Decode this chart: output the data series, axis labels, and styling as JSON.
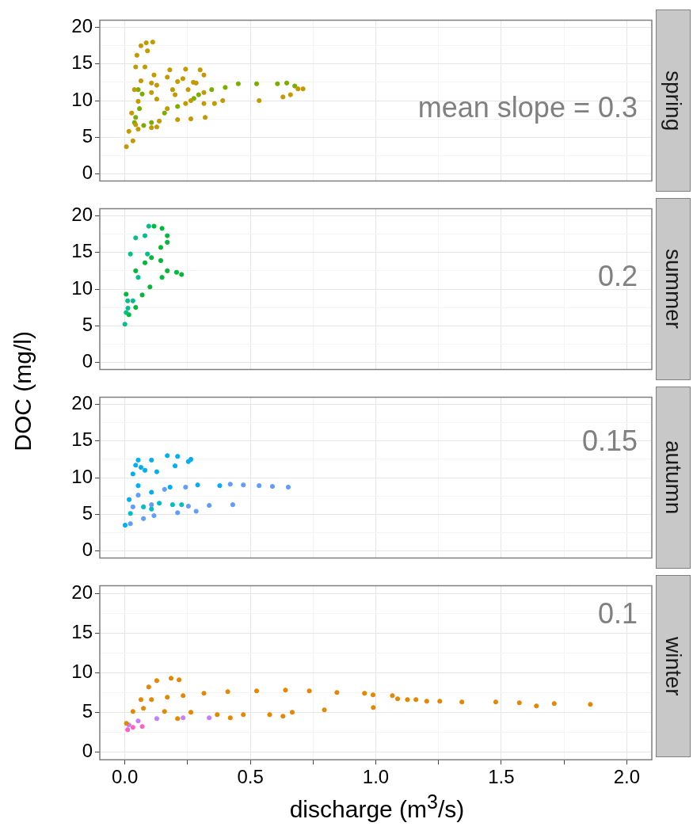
{
  "chart_data": [
    {
      "type": "scatter",
      "title": "spring",
      "annotations": [
        "mean slope = 0.3"
      ],
      "xlim": [
        -0.1,
        2.1
      ],
      "ylim": [
        -1,
        21
      ],
      "xticks": [
        0,
        {
          "value": 0.25,
          "label": null
        },
        0.5,
        {
          "value": 0.75,
          "label": null
        },
        1,
        {
          "value": 1.25,
          "label": null
        },
        1.5,
        {
          "value": 1.75,
          "label": null
        },
        2
      ],
      "yticks": [
        0,
        {
          "value": 2.5,
          "label": null
        },
        5,
        {
          "value": 7.5,
          "label": null
        },
        10,
        {
          "value": 12.5,
          "label": null
        },
        15,
        {
          "value": 17.5,
          "label": null
        },
        20
      ],
      "tick_labels": "y",
      "grid": true,
      "legend": false,
      "marker": "circle",
      "series": [
        {
          "color": "#c49a00",
          "x": [
            0.006,
            0.016,
            0.027,
            0.038,
            0.043,
            0.048,
            0.064,
            0.085,
            0.111,
            0.09,
            0.08,
            0.064,
            0.053,
            0.043,
            0.116,
            0.179,
            0.242,
            0.3,
            0.315,
            0.106,
            0.169,
            0.231,
            0.284,
            0.127,
            0.21,
            0.273,
            0.106,
            0.19,
            0.252,
            0.315,
            0.127,
            0.2,
            0.263,
            0.169,
            0.242,
            0.315,
            0.357,
            0.137,
            0.21,
            0.263,
            0.32,
            0.053,
            0.106,
            0.127,
            0.032,
            0.39,
            0.535,
            0.63,
            0.66,
            0.69,
            0.71
          ],
          "values": [
            3.7,
            5.8,
            8.3,
            11.5,
            14.6,
            16.2,
            17.5,
            17.9,
            18.0,
            16.8,
            14.6,
            12.7,
            9.9,
            6.7,
            13.5,
            14.2,
            14.3,
            14.2,
            13.5,
            12.4,
            13.2,
            13.0,
            12.4,
            12.1,
            12.6,
            12.5,
            11.1,
            11.5,
            11.5,
            11.1,
            10.2,
            10.8,
            10.0,
            8.9,
            9.6,
            9.6,
            9.6,
            7.2,
            7.4,
            7.5,
            7.7,
            6.1,
            6.3,
            6.4,
            4.5,
            10.0,
            10.0,
            10.5,
            10.8,
            11.6,
            11.6
          ]
        },
        {
          "color": "#7cae00",
          "x": [
            0.038,
            0.075,
            0.106,
            0.158,
            0.21,
            0.275,
            0.294,
            0.346,
            0.4,
            0.452,
            0.525,
            0.608,
            0.645,
            0.677,
            0.053,
            0.069,
            0.058,
            0.043
          ],
          "values": [
            7.0,
            6.6,
            7.0,
            8.3,
            9.2,
            10.3,
            10.8,
            11.5,
            11.8,
            12.3,
            12.3,
            12.3,
            12.4,
            12.0,
            11.5,
            10.9,
            8.9,
            7.7
          ]
        }
      ]
    },
    {
      "type": "scatter",
      "title": "summer",
      "annotations": [
        "0.2"
      ],
      "xlim": [
        -0.1,
        2.1
      ],
      "ylim": [
        -1,
        21
      ],
      "xticks": [
        0,
        {
          "value": 0.25,
          "label": null
        },
        0.5,
        {
          "value": 0.75,
          "label": null
        },
        1,
        {
          "value": 1.25,
          "label": null
        },
        1.5,
        {
          "value": 1.75,
          "label": null
        },
        2
      ],
      "yticks": [
        0,
        {
          "value": 2.5,
          "label": null
        },
        5,
        {
          "value": 7.5,
          "label": null
        },
        10,
        {
          "value": 12.5,
          "label": null
        },
        15,
        {
          "value": 17.5,
          "label": null
        },
        20
      ],
      "tick_labels": "y",
      "grid": true,
      "legend": false,
      "marker": "circle",
      "series": [
        {
          "color": "#00c08b",
          "x": [
            0.0,
            0.005,
            0.011,
            0.022,
            0.043,
            0.095,
            0.08,
            0.09,
            0.053,
            0.032,
            0.012
          ],
          "values": [
            5.2,
            6.8,
            8.4,
            14.8,
            17.0,
            18.6,
            17.3,
            14.8,
            11.6,
            8.4,
            7.4
          ]
        },
        {
          "color": "#00ba38",
          "x": [
            0.005,
            0.043,
            0.08,
            0.106,
            0.116,
            0.148,
            0.169,
            0.169,
            0.143,
            0.143,
            0.169,
            0.206,
            0.226,
            0.148,
            0.1,
            0.069,
            0.043,
            0.016
          ],
          "values": [
            9.3,
            12.5,
            13.6,
            14.3,
            18.6,
            18.3,
            17.3,
            16.4,
            15.7,
            13.9,
            12.5,
            12.3,
            12.0,
            11.6,
            10.3,
            9.2,
            7.5,
            6.5
          ]
        }
      ]
    },
    {
      "type": "scatter",
      "title": "autumn",
      "ylabel": "DOC (mg/l)",
      "annotations": [
        "0.15"
      ],
      "xlim": [
        -0.1,
        2.1
      ],
      "ylim": [
        -1,
        21
      ],
      "xticks": [
        0,
        {
          "value": 0.25,
          "label": null
        },
        0.5,
        {
          "value": 0.75,
          "label": null
        },
        1,
        {
          "value": 1.25,
          "label": null
        },
        1.5,
        {
          "value": 1.75,
          "label": null
        },
        2
      ],
      "yticks": [
        0,
        {
          "value": 2.5,
          "label": null
        },
        5,
        {
          "value": 7.5,
          "label": null
        },
        10,
        {
          "value": 12.5,
          "label": null
        },
        15,
        {
          "value": 17.5,
          "label": null
        },
        20
      ],
      "tick_labels": "y",
      "grid": true,
      "legend": false,
      "marker": "circle",
      "series": [
        {
          "color": "#00b0f6",
          "x": [
            0.001,
            0.017,
            0.032,
            0.043,
            0.053,
            0.064,
            0.106,
            0.169,
            0.21,
            0.263,
            0.253,
            0.2,
            0.127,
            0.08,
            0.053,
            0.106,
            0.18,
            0.29,
            0.378
          ],
          "values": [
            3.5,
            7.0,
            10.5,
            11.7,
            12.4,
            11.4,
            12.4,
            13.0,
            12.9,
            12.5,
            12.2,
            11.6,
            10.8,
            11.0,
            8.9,
            8.0,
            8.7,
            9.0,
            8.9
          ]
        },
        {
          "color": "#619cff",
          "x": [
            0.42,
            0.472,
            0.535,
            0.588,
            0.651,
            0.053,
            0.158,
            0.242,
            0.032,
            0.106,
            0.253,
            0.336,
            0.43,
            0.116,
            0.21,
            0.284,
            0.022,
            0.074
          ],
          "values": [
            9.1,
            9.0,
            8.9,
            8.8,
            8.7,
            7.6,
            8.4,
            8.7,
            6.0,
            6.3,
            6.1,
            6.2,
            6.3,
            4.8,
            5.2,
            5.4,
            3.7,
            4.4
          ]
        },
        {
          "color": "#00bfc4",
          "x": [
            0.022,
            0.074,
            0.137,
            0.19,
            0.226,
            0.106
          ],
          "values": [
            5.1,
            6.0,
            6.5,
            6.3,
            6.3,
            5.7
          ]
        }
      ]
    },
    {
      "type": "scatter",
      "title": "winter",
      "xlabel": "discharge (m$^{3}$/s)",
      "annotations": [
        "0.1"
      ],
      "xlim": [
        -0.1,
        2.1
      ],
      "ylim": [
        -1,
        21
      ],
      "xticks": [
        {
          "value": 0,
          "label": "0.0"
        },
        {
          "value": 0.25,
          "label": null
        },
        0.5,
        {
          "value": 0.75,
          "label": null
        },
        {
          "value": 1,
          "label": "1.0"
        },
        {
          "value": 1.25,
          "label": null
        },
        1.5,
        {
          "value": 1.75,
          "label": null
        },
        {
          "value": 2,
          "label": "2.0"
        }
      ],
      "yticks": [
        0,
        {
          "value": 2.5,
          "label": null
        },
        5,
        {
          "value": 7.5,
          "label": null
        },
        10,
        {
          "value": 12.5,
          "label": null
        },
        15,
        {
          "value": 17.5,
          "label": null
        },
        20
      ],
      "grid": true,
      "legend": false,
      "marker": "circle",
      "series": [
        {
          "color": "#e58700",
          "x": [
            0.006,
            0.032,
            0.064,
            0.095,
            0.127,
            0.184,
            0.216,
            0.106,
            0.169,
            0.232,
            0.315,
            0.41,
            0.525,
            0.64,
            0.735,
            0.845,
            0.955,
            0.989,
            0.99,
            1.066,
            1.087,
            1.126,
            1.16,
            1.203,
            1.255,
            1.343,
            1.478,
            1.572,
            1.64,
            1.711,
            1.855,
            0.795,
            0.074,
            0.158,
            0.263,
            0.368,
            0.472,
            0.577,
            0.667,
            0.63,
            0.21,
            0.42
          ],
          "values": [
            3.6,
            5.1,
            6.6,
            8.2,
            9.0,
            9.3,
            9.1,
            6.6,
            6.9,
            7.1,
            7.4,
            7.6,
            7.7,
            7.8,
            7.7,
            7.5,
            7.4,
            7.2,
            5.6,
            7.1,
            6.7,
            6.6,
            6.6,
            6.4,
            6.4,
            6.3,
            6.3,
            6.2,
            5.8,
            6.1,
            6.0,
            5.3,
            5.5,
            5.1,
            5.0,
            4.7,
            4.7,
            4.7,
            5.0,
            4.5,
            4.2,
            4.3
          ]
        },
        {
          "color": "#c77cff",
          "x": [
            0.016,
            0.053,
            0.127,
            0.232,
            0.336
          ],
          "values": [
            3.4,
            3.9,
            4.2,
            4.3,
            4.3
          ]
        },
        {
          "color": "#ff61c3",
          "x": [
            0.011,
            0.032,
            0.069
          ],
          "values": [
            2.8,
            3.1,
            3.2
          ]
        }
      ]
    }
  ]
}
